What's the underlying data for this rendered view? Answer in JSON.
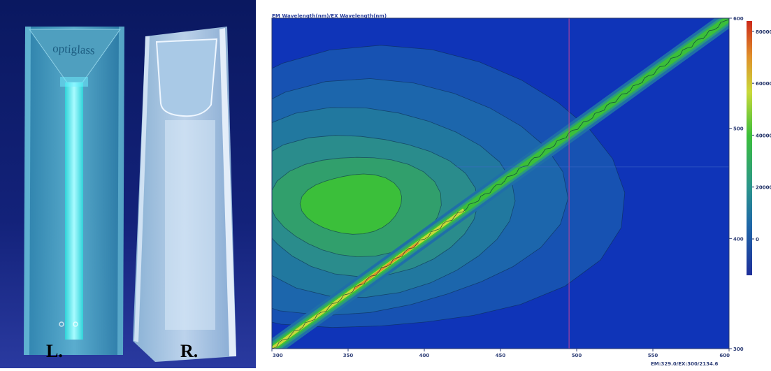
{
  "photo": {
    "left_label": "L.",
    "right_label": "R.",
    "cuvette_text": "optiglass"
  },
  "chart_data": {
    "type": "heatmap",
    "title": "EM Wavelength(nm)/EX Wavelength(nm)",
    "x": {
      "ticks": [
        300,
        350,
        400,
        450,
        500,
        550,
        600
      ],
      "range": [
        300,
        600
      ]
    },
    "y": {
      "ticks": [
        300,
        400,
        500,
        600
      ],
      "range": [
        300,
        600
      ],
      "position": "right"
    },
    "colorbar": {
      "ticks": [
        0,
        20000,
        40000,
        60000,
        80000
      ],
      "range": [
        -14000,
        84000
      ],
      "labels": [
        "0",
        "20000",
        "40000",
        "60000",
        "80000"
      ]
    },
    "cursor": {
      "em": 495,
      "ex": 465
    },
    "readout": "EM:329.0/EX:300/2134.6",
    "scatter_band": {
      "em_start": 300,
      "ex_start": 300,
      "em_end": 600,
      "ex_end": 600
    },
    "peak_region": {
      "em_center": 448,
      "ex_center": 353
    },
    "colors": {
      "background": "#0f34b8",
      "low": "#1a5aa6",
      "mid": "#2b8a8a",
      "green": "#3bbf3a",
      "yellow": "#d7e13a",
      "red": "#d43a1a"
    }
  }
}
